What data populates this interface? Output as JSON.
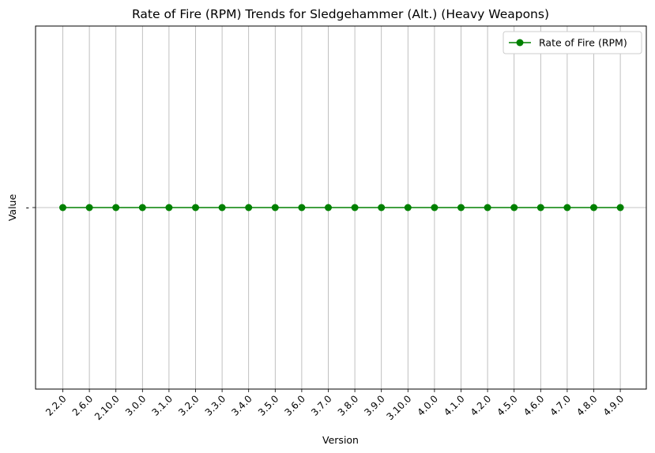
{
  "chart_data": {
    "type": "line",
    "title": "Rate of Fire (RPM) Trends for Sledgehammer (Alt.) (Heavy Weapons)",
    "xlabel": "Version",
    "ylabel": "Value",
    "categories": [
      "2.2.0",
      "2.6.0",
      "2.10.0",
      "3.0.0",
      "3.1.0",
      "3.2.0",
      "3.3.0",
      "3.4.0",
      "3.5.0",
      "3.6.0",
      "3.7.0",
      "3.8.0",
      "3.9.0",
      "3.10.0",
      "4.0.0",
      "4.1.0",
      "4.2.0",
      "4.5.0",
      "4.6.0",
      "4.7.0",
      "4.8.0",
      "4.9.0"
    ],
    "y_tick_labels": [
      "-"
    ],
    "series": [
      {
        "name": "Rate of Fire (RPM)",
        "color": "#008000",
        "marker": "circle",
        "values": [
          "-",
          "-",
          "-",
          "-",
          "-",
          "-",
          "-",
          "-",
          "-",
          "-",
          "-",
          "-",
          "-",
          "-",
          "-",
          "-",
          "-",
          "-",
          "-",
          "-",
          "-",
          "-"
        ]
      }
    ],
    "grid": true,
    "legend_position": "top-right"
  }
}
